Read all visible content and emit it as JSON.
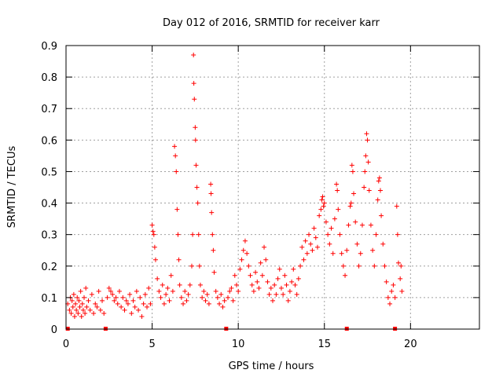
{
  "chart_data": {
    "type": "scatter",
    "title": "Day 012 of 2016, SRMTID for receiver karr",
    "xlabel": "GPS time / hours",
    "ylabel": "SRMTID / TECUs",
    "xlim": [
      0,
      24
    ],
    "ylim": [
      0,
      0.9
    ],
    "xticks": [
      0,
      5,
      10,
      15,
      20
    ],
    "yticks": [
      0,
      0.1,
      0.2,
      0.3,
      0.4,
      0.5,
      0.6,
      0.7,
      0.8,
      0.9
    ],
    "ytick_labels": [
      "0",
      "0.1",
      "0.2",
      "0.3",
      "0.4",
      "0.5",
      "0.6",
      "0.7",
      "0.8",
      "0.9"
    ],
    "grid": true,
    "marker": "+",
    "series_color": "#ff0000",
    "zero_markers": [
      0.1,
      2.3,
      9.3,
      16.3,
      19.1
    ],
    "series": [
      {
        "name": "SRMTID",
        "points": [
          [
            0.1,
            0.08
          ],
          [
            0.2,
            0.06
          ],
          [
            0.25,
            0.1
          ],
          [
            0.3,
            0.05
          ],
          [
            0.35,
            0.09
          ],
          [
            0.4,
            0.07
          ],
          [
            0.45,
            0.11
          ],
          [
            0.5,
            0.04
          ],
          [
            0.55,
            0.08
          ],
          [
            0.6,
            0.06
          ],
          [
            0.65,
            0.1
          ],
          [
            0.7,
            0.05
          ],
          [
            0.75,
            0.09
          ],
          [
            0.8,
            0.07
          ],
          [
            0.85,
            0.12
          ],
          [
            0.9,
            0.04
          ],
          [
            0.95,
            0.08
          ],
          [
            1.0,
            0.06
          ],
          [
            1.05,
            0.1
          ],
          [
            1.1,
            0.05
          ],
          [
            1.15,
            0.13
          ],
          [
            1.2,
            0.07
          ],
          [
            1.3,
            0.09
          ],
          [
            1.4,
            0.06
          ],
          [
            1.5,
            0.11
          ],
          [
            1.6,
            0.05
          ],
          [
            1.7,
            0.08
          ],
          [
            1.8,
            0.07
          ],
          [
            1.9,
            0.12
          ],
          [
            2.0,
            0.06
          ],
          [
            2.1,
            0.09
          ],
          [
            2.2,
            0.05
          ],
          [
            2.4,
            0.1
          ],
          [
            2.5,
            0.13
          ],
          [
            2.6,
            0.12
          ],
          [
            2.7,
            0.11
          ],
          [
            2.8,
            0.09
          ],
          [
            2.9,
            0.1
          ],
          [
            3.0,
            0.08
          ],
          [
            3.1,
            0.12
          ],
          [
            3.2,
            0.07
          ],
          [
            3.3,
            0.1
          ],
          [
            3.4,
            0.06
          ],
          [
            3.5,
            0.09
          ],
          [
            3.6,
            0.08
          ],
          [
            3.7,
            0.11
          ],
          [
            3.8,
            0.05
          ],
          [
            3.9,
            0.09
          ],
          [
            4.0,
            0.07
          ],
          [
            4.1,
            0.12
          ],
          [
            4.2,
            0.06
          ],
          [
            4.3,
            0.1
          ],
          [
            4.4,
            0.04
          ],
          [
            4.5,
            0.08
          ],
          [
            4.6,
            0.11
          ],
          [
            4.7,
            0.07
          ],
          [
            4.8,
            0.13
          ],
          [
            4.9,
            0.08
          ],
          [
            5.0,
            0.33
          ],
          [
            5.05,
            0.31
          ],
          [
            5.1,
            0.3
          ],
          [
            5.15,
            0.26
          ],
          [
            5.2,
            0.22
          ],
          [
            5.3,
            0.16
          ],
          [
            5.4,
            0.12
          ],
          [
            5.5,
            0.1
          ],
          [
            5.6,
            0.14
          ],
          [
            5.7,
            0.08
          ],
          [
            5.8,
            0.11
          ],
          [
            5.9,
            0.13
          ],
          [
            6.0,
            0.09
          ],
          [
            6.1,
            0.17
          ],
          [
            6.2,
            0.12
          ],
          [
            6.3,
            0.58
          ],
          [
            6.35,
            0.55
          ],
          [
            6.4,
            0.5
          ],
          [
            6.45,
            0.38
          ],
          [
            6.5,
            0.3
          ],
          [
            6.55,
            0.22
          ],
          [
            6.6,
            0.14
          ],
          [
            6.7,
            0.1
          ],
          [
            6.8,
            0.08
          ],
          [
            6.9,
            0.12
          ],
          [
            7.0,
            0.09
          ],
          [
            7.1,
            0.11
          ],
          [
            7.2,
            0.14
          ],
          [
            7.3,
            0.2
          ],
          [
            7.35,
            0.3
          ],
          [
            7.4,
            0.87
          ],
          [
            7.42,
            0.78
          ],
          [
            7.45,
            0.73
          ],
          [
            7.5,
            0.64
          ],
          [
            7.52,
            0.6
          ],
          [
            7.55,
            0.52
          ],
          [
            7.6,
            0.45
          ],
          [
            7.65,
            0.4
          ],
          [
            7.7,
            0.3
          ],
          [
            7.75,
            0.2
          ],
          [
            7.8,
            0.14
          ],
          [
            7.9,
            0.1
          ],
          [
            8.0,
            0.12
          ],
          [
            8.1,
            0.09
          ],
          [
            8.2,
            0.11
          ],
          [
            8.3,
            0.08
          ],
          [
            8.4,
            0.46
          ],
          [
            8.42,
            0.43
          ],
          [
            8.45,
            0.37
          ],
          [
            8.5,
            0.3
          ],
          [
            8.55,
            0.25
          ],
          [
            8.6,
            0.18
          ],
          [
            8.7,
            0.12
          ],
          [
            8.8,
            0.1
          ],
          [
            8.9,
            0.08
          ],
          [
            9.0,
            0.11
          ],
          [
            9.1,
            0.07
          ],
          [
            9.2,
            0.09
          ],
          [
            9.4,
            0.1
          ],
          [
            9.5,
            0.12
          ],
          [
            9.6,
            0.13
          ],
          [
            9.7,
            0.09
          ],
          [
            9.8,
            0.17
          ],
          [
            9.9,
            0.14
          ],
          [
            10.0,
            0.12
          ],
          [
            10.1,
            0.19
          ],
          [
            10.2,
            0.22
          ],
          [
            10.3,
            0.25
          ],
          [
            10.4,
            0.28
          ],
          [
            10.5,
            0.24
          ],
          [
            10.6,
            0.2
          ],
          [
            10.7,
            0.17
          ],
          [
            10.8,
            0.14
          ],
          [
            10.9,
            0.12
          ],
          [
            11.0,
            0.18
          ],
          [
            11.1,
            0.15
          ],
          [
            11.2,
            0.13
          ],
          [
            11.3,
            0.21
          ],
          [
            11.4,
            0.17
          ],
          [
            11.5,
            0.26
          ],
          [
            11.6,
            0.22
          ],
          [
            11.7,
            0.15
          ],
          [
            11.8,
            0.11
          ],
          [
            11.9,
            0.13
          ],
          [
            12.0,
            0.09
          ],
          [
            12.1,
            0.14
          ],
          [
            12.2,
            0.11
          ],
          [
            12.3,
            0.16
          ],
          [
            12.4,
            0.19
          ],
          [
            12.5,
            0.13
          ],
          [
            12.6,
            0.11
          ],
          [
            12.7,
            0.17
          ],
          [
            12.8,
            0.14
          ],
          [
            12.9,
            0.09
          ],
          [
            13.0,
            0.12
          ],
          [
            13.1,
            0.15
          ],
          [
            13.2,
            0.19
          ],
          [
            13.3,
            0.14
          ],
          [
            13.4,
            0.11
          ],
          [
            13.5,
            0.16
          ],
          [
            13.6,
            0.2
          ],
          [
            13.7,
            0.26
          ],
          [
            13.8,
            0.22
          ],
          [
            13.9,
            0.28
          ],
          [
            14.0,
            0.24
          ],
          [
            14.1,
            0.3
          ],
          [
            14.2,
            0.27
          ],
          [
            14.3,
            0.25
          ],
          [
            14.4,
            0.32
          ],
          [
            14.5,
            0.29
          ],
          [
            14.6,
            0.26
          ],
          [
            14.7,
            0.36
          ],
          [
            14.8,
            0.38
          ],
          [
            14.85,
            0.41
          ],
          [
            14.9,
            0.42
          ],
          [
            14.95,
            0.39
          ],
          [
            15.0,
            0.4
          ],
          [
            15.1,
            0.34
          ],
          [
            15.2,
            0.3
          ],
          [
            15.3,
            0.27
          ],
          [
            15.4,
            0.32
          ],
          [
            15.5,
            0.24
          ],
          [
            15.6,
            0.35
          ],
          [
            15.7,
            0.46
          ],
          [
            15.75,
            0.44
          ],
          [
            15.8,
            0.38
          ],
          [
            15.9,
            0.3
          ],
          [
            16.0,
            0.24
          ],
          [
            16.1,
            0.2
          ],
          [
            16.2,
            0.17
          ],
          [
            16.3,
            0.25
          ],
          [
            16.4,
            0.33
          ],
          [
            16.5,
            0.39
          ],
          [
            16.55,
            0.4
          ],
          [
            16.6,
            0.52
          ],
          [
            16.65,
            0.5
          ],
          [
            16.7,
            0.43
          ],
          [
            16.8,
            0.34
          ],
          [
            16.9,
            0.27
          ],
          [
            17.0,
            0.2
          ],
          [
            17.1,
            0.24
          ],
          [
            17.2,
            0.33
          ],
          [
            17.3,
            0.45
          ],
          [
            17.35,
            0.5
          ],
          [
            17.4,
            0.55
          ],
          [
            17.45,
            0.62
          ],
          [
            17.5,
            0.6
          ],
          [
            17.55,
            0.53
          ],
          [
            17.6,
            0.44
          ],
          [
            17.7,
            0.33
          ],
          [
            17.8,
            0.25
          ],
          [
            17.9,
            0.2
          ],
          [
            18.0,
            0.3
          ],
          [
            18.1,
            0.41
          ],
          [
            18.15,
            0.47
          ],
          [
            18.2,
            0.48
          ],
          [
            18.25,
            0.44
          ],
          [
            18.3,
            0.36
          ],
          [
            18.4,
            0.27
          ],
          [
            18.5,
            0.2
          ],
          [
            18.6,
            0.15
          ],
          [
            18.7,
            0.1
          ],
          [
            18.8,
            0.08
          ],
          [
            18.9,
            0.12
          ],
          [
            19.0,
            0.14
          ],
          [
            19.1,
            0.1
          ],
          [
            19.2,
            0.39
          ],
          [
            19.25,
            0.3
          ],
          [
            19.3,
            0.21
          ],
          [
            19.4,
            0.16
          ],
          [
            19.45,
            0.2
          ],
          [
            19.5,
            0.12
          ]
        ]
      }
    ]
  }
}
